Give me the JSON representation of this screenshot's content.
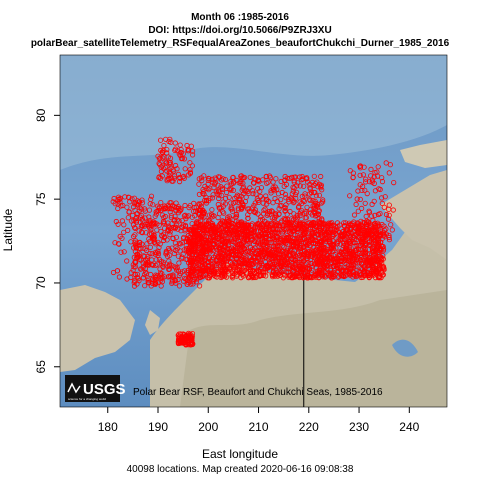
{
  "title": {
    "line1": "Month  06 :1985-2016",
    "line2": "DOI: https://doi.org/10.5066/P9ZRJ3XU",
    "line3": "polarBear_satelliteTelemetry_RSFequalAreaZones_beaufortChukchi_Durner_1985_2016"
  },
  "axes": {
    "xlabel": "East longitude",
    "ylabel": "Latitude",
    "xticks": [
      180,
      190,
      200,
      210,
      220,
      230,
      240
    ],
    "yticks": [
      65,
      70,
      75,
      80
    ],
    "xlim": [
      170.5,
      247.5
    ],
    "ylim": [
      62.6,
      83.6
    ]
  },
  "map": {
    "inset_caption": "Polar Bear RSF, Beaufort and Chukchi Seas, 1985-2016",
    "logo_text": "USGS",
    "logo_subtext": "science for a changing world",
    "boundary_longitude": 219,
    "locations_color": "#ff0000",
    "ocean_color": "#6f9bc6",
    "land_color": "#c9c2ad"
  },
  "footer": "40098 locations. Map created  2020-06-16 09:08:38",
  "chart_data": {
    "type": "scatter",
    "series": [
      {
        "description_units": "longitude (deg E), latitude (deg N)",
        "clusters": [
          {
            "lon_range": [
              196,
              235
            ],
            "lat_range": [
              70.3,
              73.6
            ],
            "density": "very high"
          },
          {
            "lon_range": [
              185,
              199
            ],
            "lat_range": [
              69.8,
              74.8
            ],
            "density": "medium"
          },
          {
            "lon_range": [
              198,
              223
            ],
            "lat_range": [
              73.4,
              76.4
            ],
            "density": "medium"
          },
          {
            "lon_range": [
              181,
              190
            ],
            "lat_range": [
              70.0,
              75.2
            ],
            "density": "low"
          },
          {
            "lon_range": [
              228,
              237
            ],
            "lat_range": [
              72.5,
              77.2
            ],
            "density": "low"
          },
          {
            "lon_range": [
              190,
              197
            ],
            "lat_range": [
              76.0,
              78.6
            ],
            "density": "low"
          },
          {
            "lon_range": [
              194,
              197
            ],
            "lat_range": [
              66.3,
              67.0
            ],
            "density": "low"
          }
        ]
      }
    ],
    "xlim": [
      170.5,
      247.5
    ],
    "ylim": [
      62.6,
      83.6
    ]
  }
}
